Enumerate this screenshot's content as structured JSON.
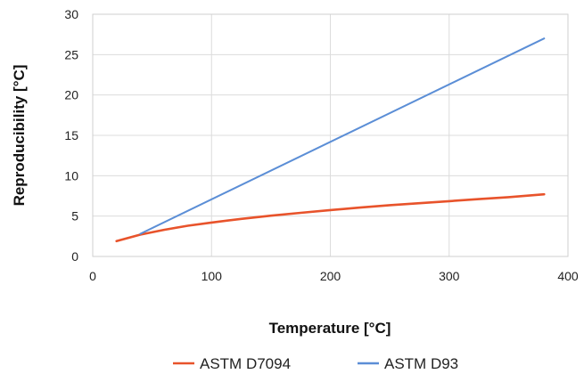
{
  "chart_data": {
    "type": "line",
    "xlabel": "Temperature [°C]",
    "ylabel": "Reproducibility [°C]",
    "xlim": [
      0,
      400
    ],
    "ylim": [
      0,
      30
    ],
    "xticks": [
      0,
      100,
      200,
      300,
      400
    ],
    "yticks": [
      0,
      5,
      10,
      15,
      20,
      25,
      30
    ],
    "grid": true,
    "legend_position": "bottom",
    "series": [
      {
        "name": "ASTM D7094",
        "color": "#e8532b",
        "x": [
          20,
          40,
          60,
          80,
          100,
          125,
          150,
          175,
          200,
          225,
          250,
          275,
          300,
          325,
          350,
          380
        ],
        "y": [
          1.9,
          2.7,
          3.3,
          3.8,
          4.2,
          4.65,
          5.05,
          5.4,
          5.75,
          6.05,
          6.35,
          6.6,
          6.85,
          7.1,
          7.35,
          7.7
        ]
      },
      {
        "name": "ASTM D93",
        "color": "#5b8ed6",
        "x": [
          40,
          380
        ],
        "y": [
          2.8,
          27.0
        ]
      }
    ]
  }
}
